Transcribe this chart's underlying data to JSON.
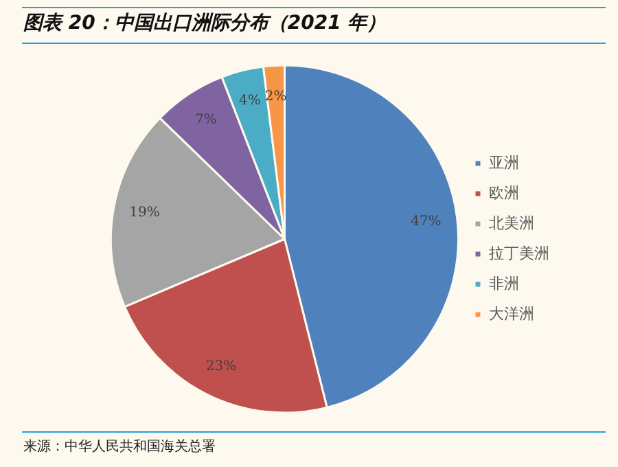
{
  "chart_data": {
    "type": "pie",
    "title": "图表 20：中国出口洲际分布（2021 年）",
    "categories": [
      "亚洲",
      "欧洲",
      "北美洲",
      "拉丁美洲",
      "非洲",
      "大洋洲"
    ],
    "values": [
      47,
      23,
      19,
      7,
      4,
      2
    ],
    "value_labels": [
      "47%",
      "23%",
      "19%",
      "7%",
      "4%",
      "2%"
    ],
    "colors": [
      "#4f81bd",
      "#c0504d",
      "#a5a5a5",
      "#8064a2",
      "#4bacc6",
      "#f79646"
    ],
    "legend": "right",
    "annotations": [
      "来源：中华人民共和国海关总署"
    ]
  }
}
